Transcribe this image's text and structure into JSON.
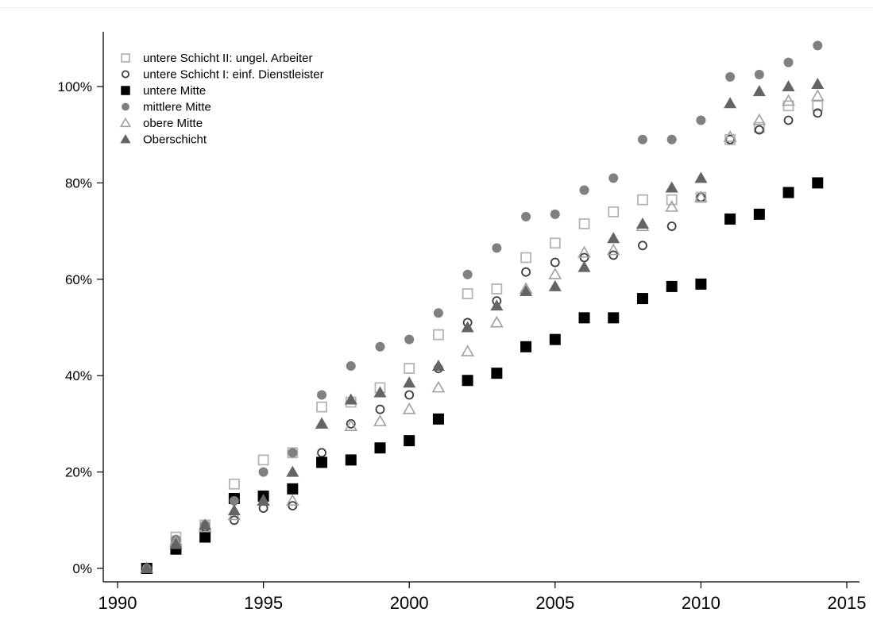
{
  "chart_data": {
    "type": "scatter",
    "title": "",
    "xlabel": "",
    "ylabel": "",
    "xlim": [
      1990,
      2015
    ],
    "ylim": [
      0,
      110
    ],
    "x_ticks": [
      1990,
      1995,
      2000,
      2005,
      2010,
      2015
    ],
    "y_ticks": [
      0,
      20,
      40,
      60,
      80,
      100
    ],
    "y_tick_suffix": "%",
    "grid": false,
    "legend_position": "top-left",
    "x": [
      1991,
      1992,
      1993,
      1994,
      1995,
      1996,
      1997,
      1998,
      1999,
      2000,
      2001,
      2002,
      2003,
      2004,
      2005,
      2006,
      2007,
      2008,
      2009,
      2010,
      2011,
      2012,
      2013,
      2014
    ],
    "series": [
      {
        "name": "untere Schicht II: ungel. Arbeiter",
        "marker": "square-open",
        "color": "#b4b4b4",
        "values": [
          0,
          6.5,
          9,
          17.5,
          22.5,
          24,
          33.5,
          34.5,
          37.5,
          41.5,
          48.5,
          57,
          58,
          64.5,
          67.5,
          71.5,
          74,
          76.5,
          76.5,
          77,
          89,
          91.5,
          96,
          96
        ]
      },
      {
        "name": "untere Schicht I: einf. Dienstleister",
        "marker": "circle-open",
        "color": "#3c3c3c",
        "values": [
          0,
          5.5,
          8.5,
          10,
          12.5,
          13,
          24,
          30,
          33,
          36,
          41.5,
          51,
          55.5,
          61.5,
          63.5,
          64.5,
          65,
          67,
          71,
          77,
          89,
          91,
          93,
          94.5
        ]
      },
      {
        "name": "untere Mitte",
        "marker": "square-filled",
        "color": "#000000",
        "values": [
          0,
          4,
          6.5,
          14.5,
          15,
          16.5,
          22,
          22.5,
          25,
          26.5,
          31,
          39,
          40.5,
          46,
          47.5,
          52,
          52,
          56,
          58.5,
          59,
          72.5,
          73.5,
          78,
          80
        ]
      },
      {
        "name": "mittlere Mitte",
        "marker": "circle-filled",
        "color": "#808080",
        "values": [
          0,
          6,
          9,
          14,
          20,
          24,
          36,
          42,
          46,
          47.5,
          53,
          61,
          66.5,
          73,
          73.5,
          78.5,
          81,
          89,
          89,
          93,
          102,
          102.5,
          105,
          108.5
        ]
      },
      {
        "name": "obere Mitte",
        "marker": "triangle-open",
        "color": "#a0a0a0",
        "values": [
          0,
          5.5,
          8.5,
          11,
          14,
          14,
          30,
          29.5,
          30.5,
          33,
          37.5,
          45,
          51,
          58,
          61,
          65.5,
          66,
          71,
          75,
          77,
          89.5,
          93,
          97,
          98
        ]
      },
      {
        "name": "Oberschicht",
        "marker": "triangle-filled",
        "color": "#646464",
        "values": [
          0,
          5,
          9,
          12,
          14,
          20,
          30,
          35,
          36.5,
          38.5,
          42,
          50,
          54.5,
          57.5,
          58.5,
          62.5,
          68.5,
          71.5,
          79,
          81,
          96.5,
          99,
          100,
          100.5
        ]
      }
    ]
  }
}
